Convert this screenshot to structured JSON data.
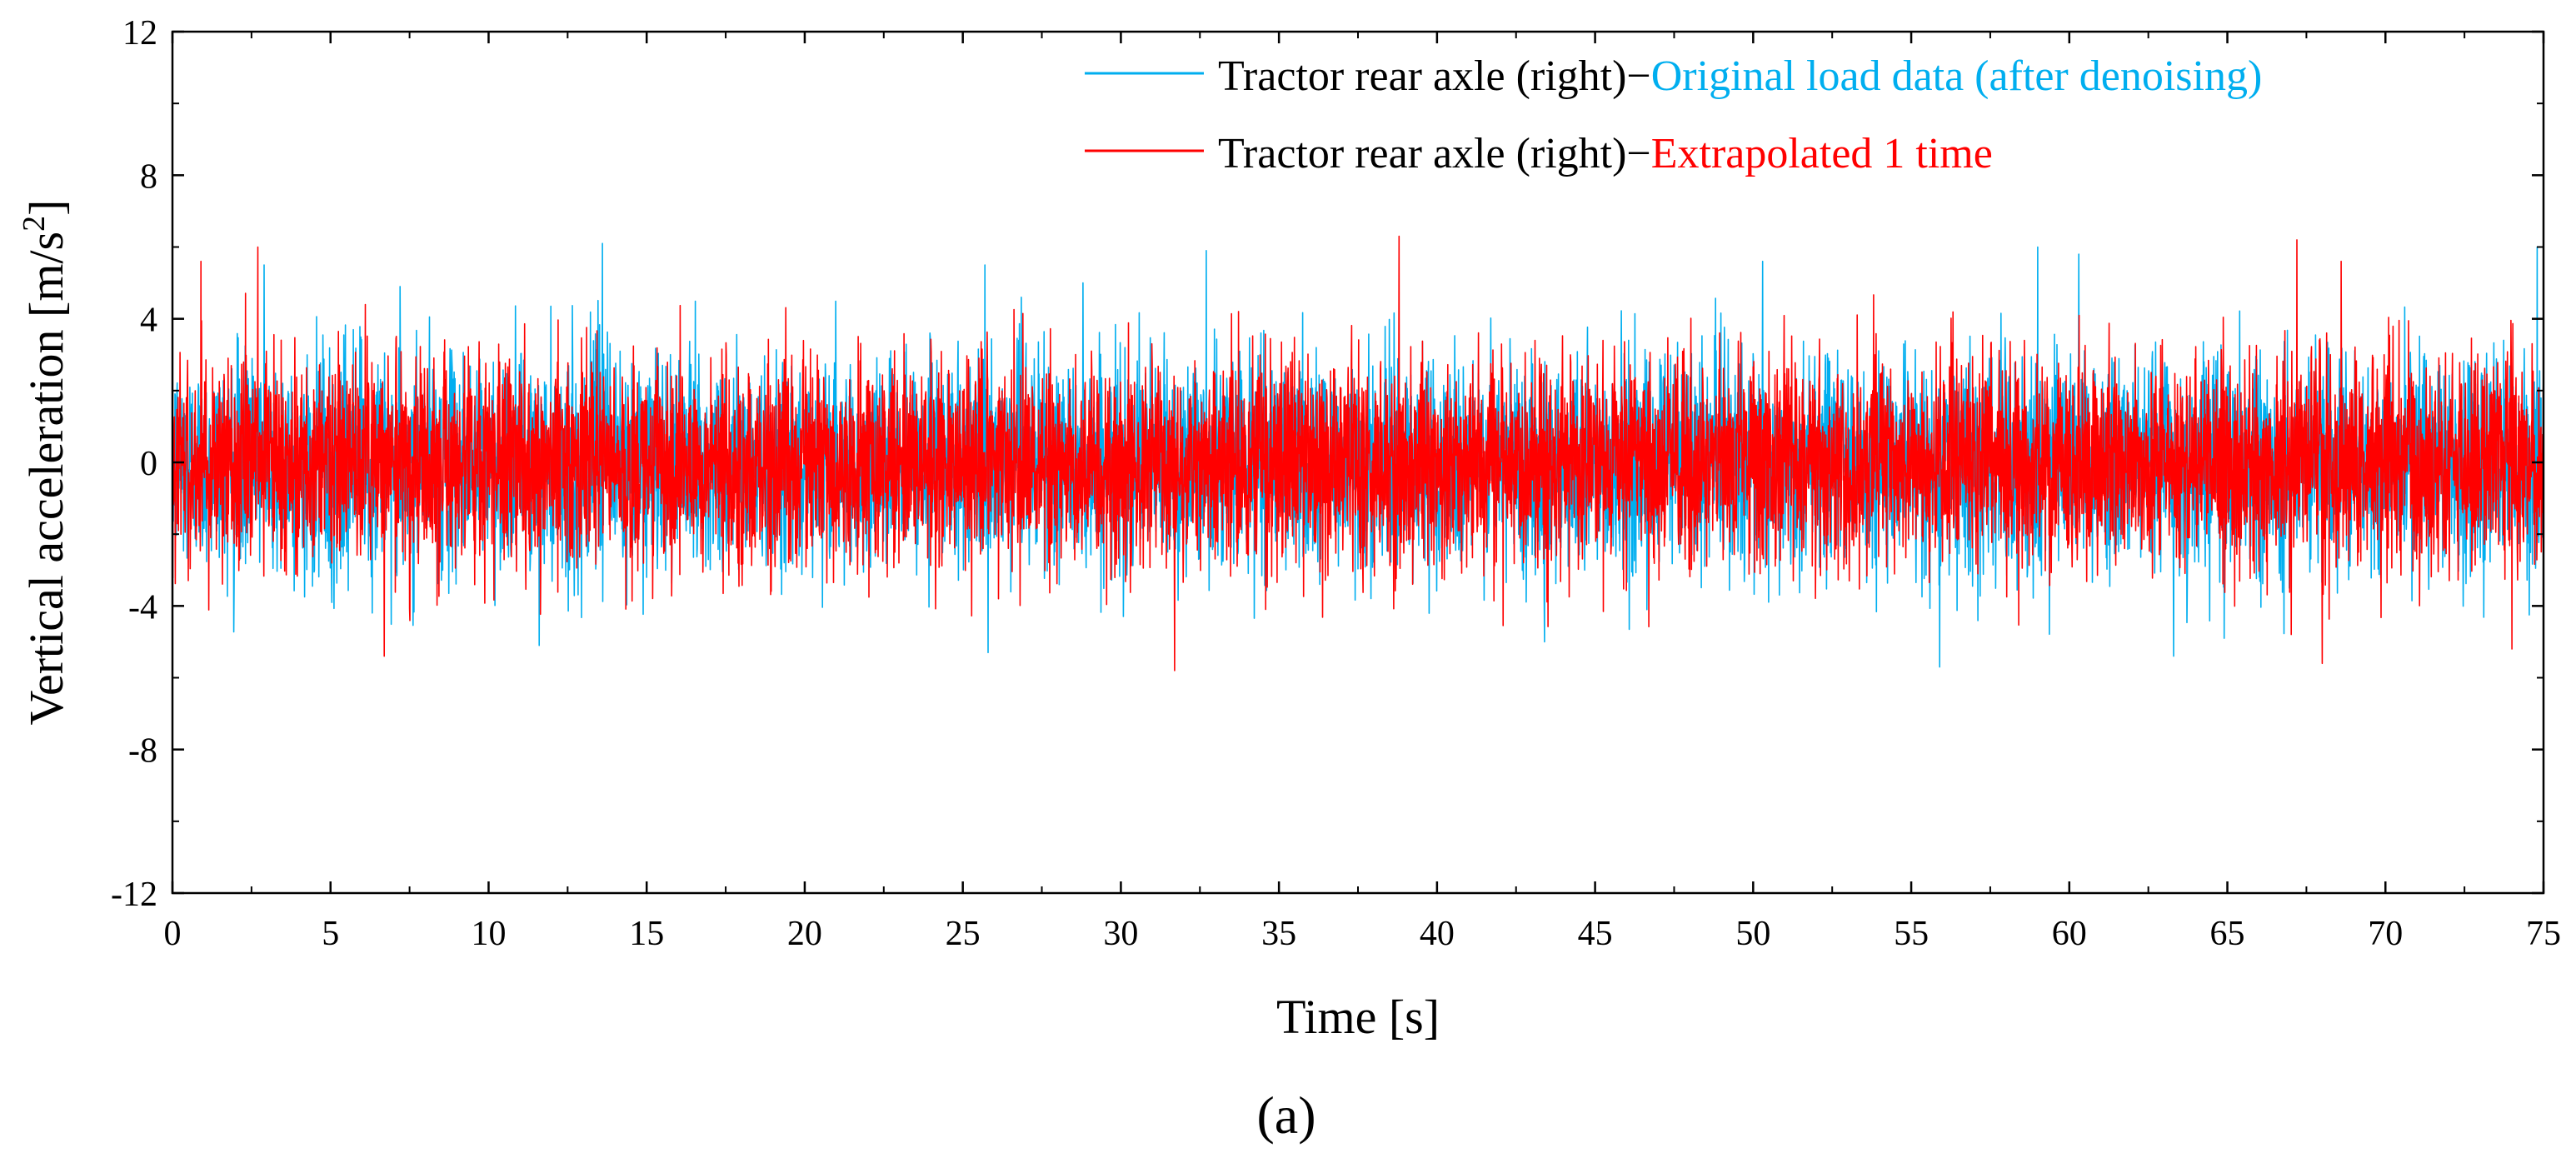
{
  "chart_data": {
    "type": "line",
    "title": "",
    "xlabel": "Time [s]",
    "ylabel_prefix": "Vertical acceleration [m/s",
    "ylabel_sup": "2",
    "ylabel_suffix": "]",
    "xlim": [
      0,
      75
    ],
    "ylim": [
      -12,
      12
    ],
    "xticks": [
      0,
      5,
      10,
      15,
      20,
      25,
      30,
      35,
      40,
      45,
      50,
      55,
      60,
      65,
      70,
      75
    ],
    "yticks": [
      -12,
      -8,
      -4,
      0,
      4,
      8,
      12
    ],
    "xtick_labels": [
      "0",
      "5",
      "10",
      "15",
      "20",
      "25",
      "30",
      "35",
      "40",
      "45",
      "50",
      "55",
      "60",
      "65",
      "70",
      "75"
    ],
    "ytick_labels": [
      "-12",
      "-8",
      "-4",
      "0",
      "4",
      "8",
      "12"
    ],
    "grid": false,
    "legend_position": "top-right",
    "series": [
      {
        "name": "Tractor rear axle (right)−Original load data (after denoising)",
        "legend_prefix": "Tractor rear axle (right)−",
        "legend_highlight": "Original load data (after denoising)",
        "color": "#00aeef",
        "description": "random vibration signal, mean 0, typical range about -4 to 4",
        "peaks": [
          {
            "x": 2.9,
            "y": 5.5
          },
          {
            "x": 7.2,
            "y": 4.9
          },
          {
            "x": 13.6,
            "y": 6.1
          },
          {
            "x": 25.7,
            "y": 5.5
          },
          {
            "x": 28.8,
            "y": 5.0
          },
          {
            "x": 32.7,
            "y": 5.9
          },
          {
            "x": 50.3,
            "y": 5.6
          },
          {
            "x": 59.0,
            "y": 6.0
          },
          {
            "x": 60.3,
            "y": 5.8
          },
          {
            "x": 74.8,
            "y": 6.0
          },
          {
            "x": 11.6,
            "y": -5.1
          },
          {
            "x": 25.8,
            "y": -5.3
          },
          {
            "x": 43.4,
            "y": -5.0
          },
          {
            "x": 55.9,
            "y": -5.7
          },
          {
            "x": 64.9,
            "y": -4.9
          },
          {
            "x": 63.3,
            "y": -5.4
          }
        ]
      },
      {
        "name": "Tractor rear axle (right)−Extrapolated 1 time",
        "legend_prefix": "Tractor rear axle (right)−",
        "legend_highlight": "Extrapolated 1 time",
        "color": "#ff0000",
        "description": "extrapolated random vibration signal, mean 0, typical range about -4 to 4",
        "peaks": [
          {
            "x": 2.7,
            "y": 6.0
          },
          {
            "x": 38.8,
            "y": 6.3
          },
          {
            "x": 67.2,
            "y": 6.2
          },
          {
            "x": 68.6,
            "y": 5.6
          },
          {
            "x": 0.9,
            "y": 5.6
          },
          {
            "x": 31.7,
            "y": -5.8
          },
          {
            "x": 68.0,
            "y": -5.6
          },
          {
            "x": 6.7,
            "y": -5.4
          },
          {
            "x": 74.0,
            "y": -5.2
          }
        ]
      }
    ]
  },
  "caption": "(a)"
}
